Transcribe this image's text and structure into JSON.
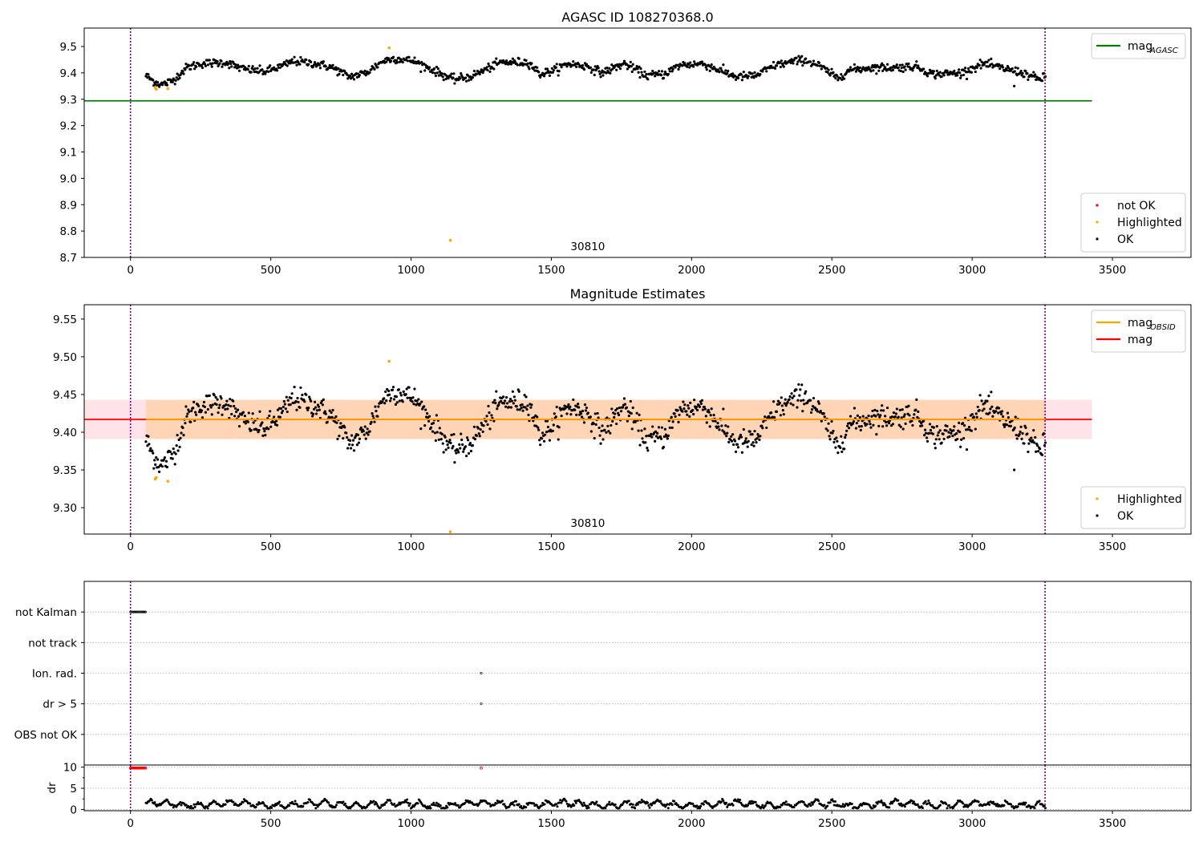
{
  "chart_data": [
    {
      "id": "agasc-panel",
      "type": "scatter",
      "title": "AGASC ID 108270368.0",
      "xlim": [
        -165,
        3780
      ],
      "ylim": [
        8.7,
        9.57
      ],
      "xticks": [
        0,
        500,
        1000,
        1500,
        2000,
        2500,
        3000,
        3500
      ],
      "yticks": [
        8.7,
        8.8,
        8.9,
        9.0,
        9.1,
        9.2,
        9.3,
        9.4,
        9.5
      ],
      "ytick_format": 1,
      "obsid_label": "30810",
      "obsid_label_x": 1630,
      "obsid_lines_x": [
        0,
        3260
      ],
      "series": [
        {
          "name": "not OK",
          "color": "#ff0000",
          "values": []
        },
        {
          "name": "Highlighted",
          "color": "#ffa500",
          "points": [
            [
              88,
              9.345
            ],
            [
              92,
              9.338
            ],
            [
              133,
              9.34
            ],
            [
              922,
              9.495
            ],
            [
              1140,
              8.765
            ]
          ]
        },
        {
          "name": "OK",
          "color": "#000000",
          "lightcurve": {
            "x_start": 55,
            "x_end": 3262,
            "step": 2.8,
            "noise": 0.008,
            "dips": [
              [
                1155,
                9.35
              ],
              [
                1250,
                9.355
              ]
            ]
          }
        }
      ],
      "curve_shape": [
        [
          55,
          9.39
        ],
        [
          80,
          9.37
        ],
        [
          110,
          9.355
        ],
        [
          150,
          9.37
        ],
        [
          200,
          9.42
        ],
        [
          250,
          9.435
        ],
        [
          340,
          9.44
        ],
        [
          400,
          9.415
        ],
        [
          480,
          9.405
        ],
        [
          540,
          9.425
        ],
        [
          580,
          9.445
        ],
        [
          660,
          9.435
        ],
        [
          720,
          9.42
        ],
        [
          780,
          9.385
        ],
        [
          840,
          9.4
        ],
        [
          900,
          9.445
        ],
        [
          940,
          9.455
        ],
        [
          1010,
          9.445
        ],
        [
          1080,
          9.41
        ],
        [
          1150,
          9.375
        ],
        [
          1210,
          9.385
        ],
        [
          1270,
          9.415
        ],
        [
          1320,
          9.44
        ],
        [
          1420,
          9.44
        ],
        [
          1460,
          9.395
        ],
        [
          1510,
          9.41
        ],
        [
          1560,
          9.435
        ],
        [
          1630,
          9.425
        ],
        [
          1680,
          9.4
        ],
        [
          1760,
          9.435
        ],
        [
          1840,
          9.39
        ],
        [
          1900,
          9.395
        ],
        [
          1960,
          9.43
        ],
        [
          2040,
          9.435
        ],
        [
          2100,
          9.41
        ],
        [
          2160,
          9.385
        ],
        [
          2230,
          9.39
        ],
        [
          2300,
          9.43
        ],
        [
          2400,
          9.45
        ],
        [
          2450,
          9.43
        ],
        [
          2520,
          9.38
        ],
        [
          2560,
          9.41
        ],
        [
          2640,
          9.42
        ],
        [
          2720,
          9.42
        ],
        [
          2800,
          9.425
        ],
        [
          2860,
          9.395
        ],
        [
          2960,
          9.4
        ],
        [
          3040,
          9.435
        ],
        [
          3100,
          9.42
        ],
        [
          3180,
          9.4
        ],
        [
          3240,
          9.375
        ],
        [
          3262,
          9.385
        ]
      ],
      "hlines": [
        {
          "name": "mag_AGASC",
          "color": "#008000",
          "y": 9.294,
          "x_range": [
            -165,
            3427
          ]
        }
      ],
      "legends": [
        {
          "position": "top-right",
          "items": [
            {
              "label": "mag",
              "sub": "AGASC",
              "color": "#008000",
              "kind": "line"
            }
          ]
        },
        {
          "position": "bottom-right",
          "items": [
            {
              "label": "not OK",
              "color": "#ff0000",
              "kind": "dot"
            },
            {
              "label": "Highlighted",
              "color": "#ffa500",
              "kind": "dot"
            },
            {
              "label": "OK",
              "color": "#000000",
              "kind": "dot"
            }
          ]
        }
      ]
    },
    {
      "id": "estimates-panel",
      "type": "scatter",
      "title": "Magnitude Estimates",
      "xlim": [
        -165,
        3780
      ],
      "ylim": [
        9.265,
        9.569
      ],
      "xticks": [
        0,
        500,
        1000,
        1500,
        2000,
        2500,
        3000,
        3500
      ],
      "yticks": [
        9.3,
        9.35,
        9.4,
        9.45,
        9.5,
        9.55
      ],
      "ytick_format": 2,
      "obsid_label": "30810",
      "obsid_label_x": 1630,
      "obsid_lines_x": [
        0,
        3260
      ],
      "series": [
        {
          "name": "Highlighted",
          "color": "#ffa500",
          "points": [
            [
              88,
              9.338
            ],
            [
              92,
              9.34
            ],
            [
              133,
              9.335
            ],
            [
              922,
              9.494
            ],
            [
              1140,
              9.268
            ]
          ]
        },
        {
          "name": "OK",
          "color": "#000000",
          "lightcurve": {
            "x_start": 55,
            "x_end": 3262,
            "step": 2.8,
            "noise": 0.008,
            "dips": [
              [
                1155,
                9.35
              ],
              [
                1250,
                9.355
              ]
            ]
          }
        }
      ],
      "hlines": [
        {
          "name": "mag",
          "color": "#ff0000",
          "y": 9.417,
          "x_range": [
            -165,
            3427
          ]
        },
        {
          "name": "mag_OBSID",
          "color": "#ffa500",
          "y": 9.417,
          "x_range": [
            55,
            3262
          ]
        }
      ],
      "bands": [
        {
          "color": "#ffc0cb",
          "opacity": 0.45,
          "y_range": [
            9.391,
            9.443
          ],
          "x_range": [
            -165,
            3427
          ]
        },
        {
          "color": "#ffa500",
          "opacity": 0.22,
          "y_range": [
            9.391,
            9.443
          ],
          "x_range": [
            55,
            3262
          ]
        }
      ],
      "legends": [
        {
          "position": "top-right",
          "items": [
            {
              "label": "mag",
              "sub": "OBSID",
              "color": "#ffa500",
              "kind": "line"
            },
            {
              "label": "mag",
              "color": "#ff0000",
              "kind": "line"
            }
          ]
        },
        {
          "position": "bottom-right",
          "items": [
            {
              "label": "Highlighted",
              "color": "#ffa500",
              "kind": "dot"
            },
            {
              "label": "OK",
              "color": "#000000",
              "kind": "dot"
            }
          ]
        }
      ]
    },
    {
      "id": "flags-panel",
      "type": "scatter",
      "xlim": [
        -165,
        3780
      ],
      "categories": [
        "not Kalman",
        "not track",
        "Ion. rad.",
        "dr > 5",
        "OBS not OK"
      ],
      "obsid_lines_x": [
        0,
        3260
      ],
      "flag_points": [
        {
          "category": "not Kalman",
          "x_range": [
            0,
            55
          ],
          "color": "#000000"
        },
        {
          "category": "Ion. rad.",
          "x": 1250,
          "color": "#000000"
        },
        {
          "category": "dr > 5",
          "x": 1250,
          "color": "#000000"
        }
      ]
    },
    {
      "id": "dr-panel",
      "type": "scatter",
      "ylabel": "dr",
      "xlim": [
        -165,
        3780
      ],
      "ylim": [
        -0.3,
        10.5
      ],
      "xticks": [
        0,
        500,
        1000,
        1500,
        2000,
        2500,
        3000,
        3500
      ],
      "yticks": [
        0,
        5,
        10
      ],
      "obsid_lines_x": [
        0,
        3260
      ],
      "series": [
        {
          "name": "OK",
          "color": "#000000",
          "dr_curve": {
            "x_start": 55,
            "x_end": 3262,
            "step": 3.5,
            "base": 1.2,
            "amp": 0.6
          }
        },
        {
          "name": "not OK",
          "color": "#ff0000",
          "points_range": {
            "x_range": [
              0,
              55
            ],
            "y": 9.8
          },
          "points": [
            [
              1250,
              9.8
            ]
          ]
        }
      ]
    }
  ]
}
